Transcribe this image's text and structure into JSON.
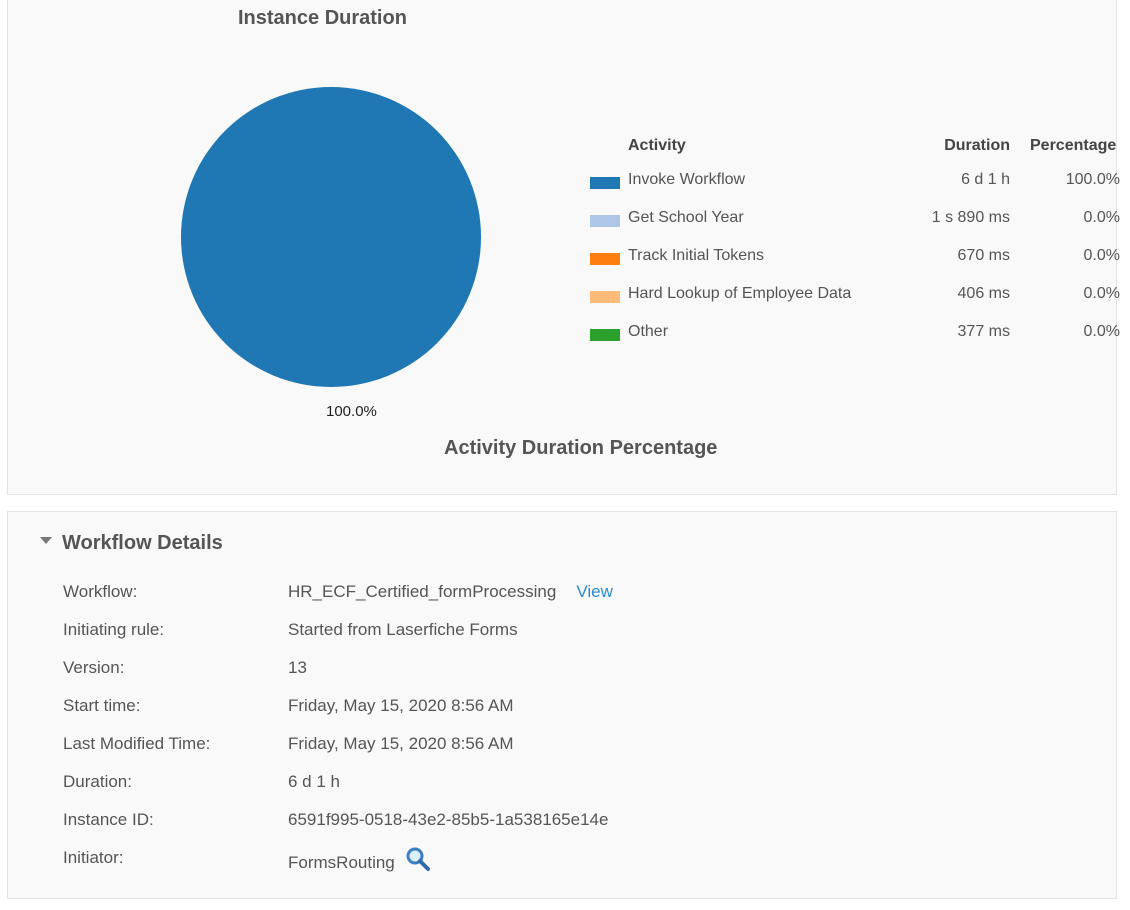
{
  "chart_data": {
    "type": "pie",
    "title": "Instance Duration",
    "subtitle": "Activity Duration Percentage",
    "slice_label": "100.0%",
    "legend_headers": {
      "activity": "Activity",
      "duration": "Duration",
      "percentage": "Percentage"
    },
    "series": [
      {
        "name": "Invoke Workflow",
        "duration": "6 d 1 h",
        "percentage": "100.0%",
        "value": 100.0,
        "color": "#1f77b4"
      },
      {
        "name": "Get School Year",
        "duration": "1 s 890 ms",
        "percentage": "0.0%",
        "value": 0.0,
        "color": "#aec7e8"
      },
      {
        "name": "Track Initial Tokens",
        "duration": "670 ms",
        "percentage": "0.0%",
        "value": 0.0,
        "color": "#ff7f0e"
      },
      {
        "name": "Hard Lookup of Employee Data",
        "duration": "406 ms",
        "percentage": "0.0%",
        "value": 0.0,
        "color": "#ffbb78"
      },
      {
        "name": "Other",
        "duration": "377 ms",
        "percentage": "0.0%",
        "value": 0.0,
        "color": "#2ca02c"
      }
    ],
    "legend_position": "right"
  },
  "details": {
    "header": "Workflow Details",
    "toggle_icon": "caret-down-icon",
    "view_link": "View",
    "initiator_icon": "search-icon",
    "rows": [
      {
        "label": "Workflow:",
        "value": "HR_ECF_Certified_formProcessing"
      },
      {
        "label": "Initiating rule:",
        "value": "Started from Laserfiche Forms"
      },
      {
        "label": "Version:",
        "value": "13"
      },
      {
        "label": "Start time:",
        "value": "Friday, May 15, 2020 8:56 AM"
      },
      {
        "label": "Last Modified Time:",
        "value": "Friday, May 15, 2020 8:56 AM"
      },
      {
        "label": "Duration:",
        "value": "6 d 1 h"
      },
      {
        "label": "Instance ID:",
        "value": "6591f995-0518-43e2-85b5-1a538165e14e"
      },
      {
        "label": "Initiator:",
        "value": "FormsRouting"
      }
    ]
  }
}
